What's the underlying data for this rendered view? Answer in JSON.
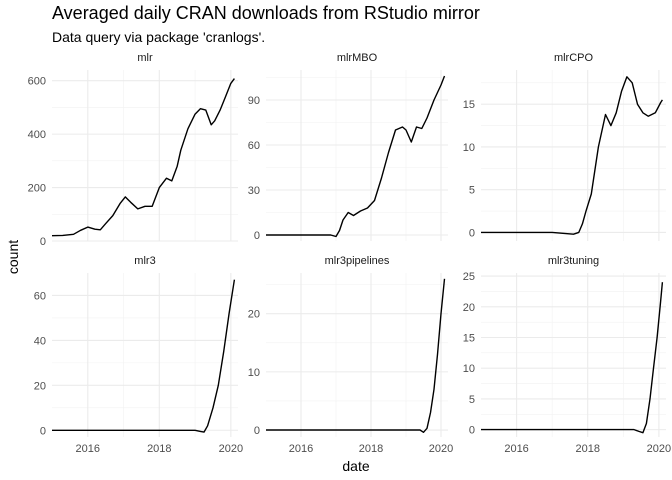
{
  "title": "Averaged daily CRAN downloads from RStudio mirror",
  "subtitle": "Data query via package 'cranlogs'.",
  "chart_data": {
    "type": "line",
    "facet": "wrap",
    "xlabel": "date",
    "ylabel": "count",
    "x_ticks": [
      "2016",
      "2018",
      "2020"
    ],
    "xlim": [
      2015.0,
      2020.2
    ],
    "grid": true,
    "panels": [
      {
        "name": "mlr",
        "ylim": [
          0,
          640
        ],
        "y_ticks": [
          0,
          200,
          400,
          600
        ],
        "x": [
          2015.0,
          2015.3,
          2015.6,
          2015.8,
          2016.0,
          2016.2,
          2016.35,
          2016.5,
          2016.7,
          2016.9,
          2017.05,
          2017.2,
          2017.4,
          2017.6,
          2017.8,
          2018.0,
          2018.2,
          2018.35,
          2018.5,
          2018.6,
          2018.8,
          2019.0,
          2019.15,
          2019.3,
          2019.45,
          2019.55,
          2019.7,
          2019.85,
          2020.0,
          2020.1
        ],
        "values": [
          20,
          21,
          25,
          40,
          52,
          44,
          42,
          65,
          95,
          140,
          165,
          145,
          120,
          130,
          130,
          200,
          235,
          225,
          280,
          340,
          420,
          475,
          495,
          490,
          435,
          450,
          490,
          540,
          590,
          608
        ]
      },
      {
        "name": "mlrMBO",
        "ylim": [
          -4,
          110
        ],
        "y_ticks": [
          0,
          30,
          60,
          90
        ],
        "x": [
          2015.0,
          2015.5,
          2016.0,
          2016.5,
          2016.85,
          2017.0,
          2017.1,
          2017.2,
          2017.35,
          2017.5,
          2017.7,
          2017.9,
          2018.1,
          2018.3,
          2018.5,
          2018.7,
          2018.9,
          2019.0,
          2019.15,
          2019.3,
          2019.45,
          2019.6,
          2019.8,
          2020.0,
          2020.1
        ],
        "values": [
          0,
          0,
          0,
          0,
          0,
          -1,
          3,
          10,
          15,
          13,
          16,
          18,
          23,
          38,
          55,
          70,
          72,
          70,
          62,
          72,
          71,
          78,
          90,
          100,
          106
        ]
      },
      {
        "name": "mlrCPO",
        "ylim": [
          -1,
          19
        ],
        "y_ticks": [
          0,
          5,
          10,
          15
        ],
        "x": [
          2015.0,
          2015.5,
          2016.0,
          2016.5,
          2017.0,
          2017.6,
          2017.75,
          2017.85,
          2017.95,
          2018.1,
          2018.3,
          2018.5,
          2018.65,
          2018.8,
          2018.95,
          2019.1,
          2019.25,
          2019.4,
          2019.55,
          2019.7,
          2019.9,
          2020.05,
          2020.1
        ],
        "values": [
          0,
          0,
          0,
          0,
          0,
          -0.2,
          0,
          1,
          2.5,
          4.5,
          10,
          13.8,
          12.5,
          14,
          16.5,
          18.2,
          17.5,
          15,
          14,
          13.6,
          14,
          15.2,
          15.5
        ]
      },
      {
        "name": "mlr3",
        "ylim": [
          -3,
          70
        ],
        "y_ticks": [
          0,
          20,
          40,
          60
        ],
        "x": [
          2015.0,
          2015.5,
          2016.0,
          2016.5,
          2017.0,
          2017.5,
          2018.0,
          2018.5,
          2019.0,
          2019.15,
          2019.25,
          2019.35,
          2019.5,
          2019.65,
          2019.8,
          2019.95,
          2020.1
        ],
        "values": [
          0,
          0,
          0,
          0,
          0,
          0,
          0,
          0,
          0,
          -0.5,
          -0.8,
          2,
          10,
          20,
          35,
          52,
          67
        ]
      },
      {
        "name": "mlr3pipelines",
        "ylim": [
          -1.2,
          27
        ],
        "y_ticks": [
          0,
          10,
          20
        ],
        "x": [
          2015.0,
          2015.5,
          2016.0,
          2016.5,
          2017.0,
          2017.5,
          2018.0,
          2018.5,
          2019.0,
          2019.4,
          2019.5,
          2019.6,
          2019.7,
          2019.8,
          2019.9,
          2020.0,
          2020.1
        ],
        "values": [
          0,
          0,
          0,
          0,
          0,
          0,
          0,
          0,
          0,
          0,
          -0.4,
          0.3,
          3,
          7,
          13,
          20,
          26
        ]
      },
      {
        "name": "mlr3tuning",
        "ylim": [
          -1.2,
          25.5
        ],
        "y_ticks": [
          0,
          5,
          10,
          15,
          20,
          25
        ],
        "x": [
          2015.0,
          2015.5,
          2016.0,
          2016.5,
          2017.0,
          2017.5,
          2018.0,
          2018.5,
          2019.0,
          2019.3,
          2019.45,
          2019.55,
          2019.65,
          2019.75,
          2019.85,
          2019.95,
          2020.05,
          2020.1
        ],
        "values": [
          0,
          0,
          0,
          0,
          0,
          0,
          0,
          0,
          0,
          0,
          -0.3,
          -0.5,
          1,
          5,
          10,
          15,
          21,
          24
        ]
      }
    ]
  }
}
